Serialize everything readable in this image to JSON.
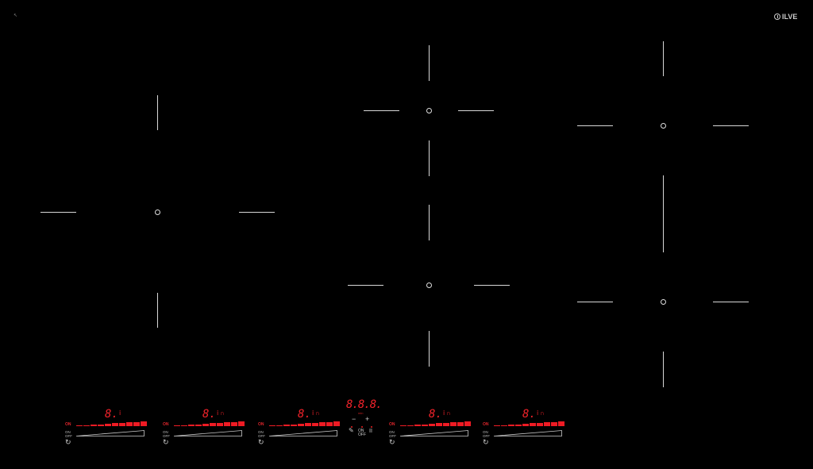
{
  "brand": {
    "logo_text": "ILVE"
  },
  "cursor_icon": "pointer-cursor-icon",
  "colors": {
    "background": "#000000",
    "display_red": "#f0222a",
    "lines": "#d8d8d8"
  },
  "cooking_zones": [
    {
      "name": "left-zone"
    },
    {
      "name": "center-top-zone"
    },
    {
      "name": "center-bottom-zone"
    },
    {
      "name": "right-top-zone"
    },
    {
      "name": "right-bottom-zone"
    }
  ],
  "controls": [
    {
      "digit": "8.",
      "indicator": "ⅰ",
      "extra": "",
      "on_label": "ON",
      "onoff_label": [
        "ON",
        "OFF"
      ],
      "power_icon": "power-cycle-icon"
    },
    {
      "digit": "8.",
      "indicator": "ⅰ",
      "extra": "∩",
      "on_label": "ON",
      "onoff_label": [
        "ON",
        "OFF"
      ],
      "power_icon": "power-cycle-icon"
    },
    {
      "digit": "8.",
      "indicator": "ⅰ",
      "extra": "∩",
      "on_label": "ON",
      "onoff_label": [
        "ON",
        "OFF"
      ],
      "power_icon": "power-cycle-icon"
    },
    {
      "digit": "8.",
      "indicator": "ⅰ",
      "extra": "∩",
      "on_label": "ON",
      "onoff_label": [
        "ON",
        "OFF"
      ],
      "power_icon": "power-cycle-icon"
    },
    {
      "digit": "8.",
      "indicator": "ⅰ",
      "extra": "∩",
      "on_label": "ON",
      "onoff_label": [
        "ON",
        "OFF"
      ],
      "power_icon": "power-cycle-icon"
    }
  ],
  "timer": {
    "display": "8.8.8.",
    "unit": "min",
    "minus": "−",
    "plus": "+",
    "brush_icon": "cleaning-brush-icon",
    "on": "ON",
    "off": "OFF",
    "pause": "II"
  }
}
